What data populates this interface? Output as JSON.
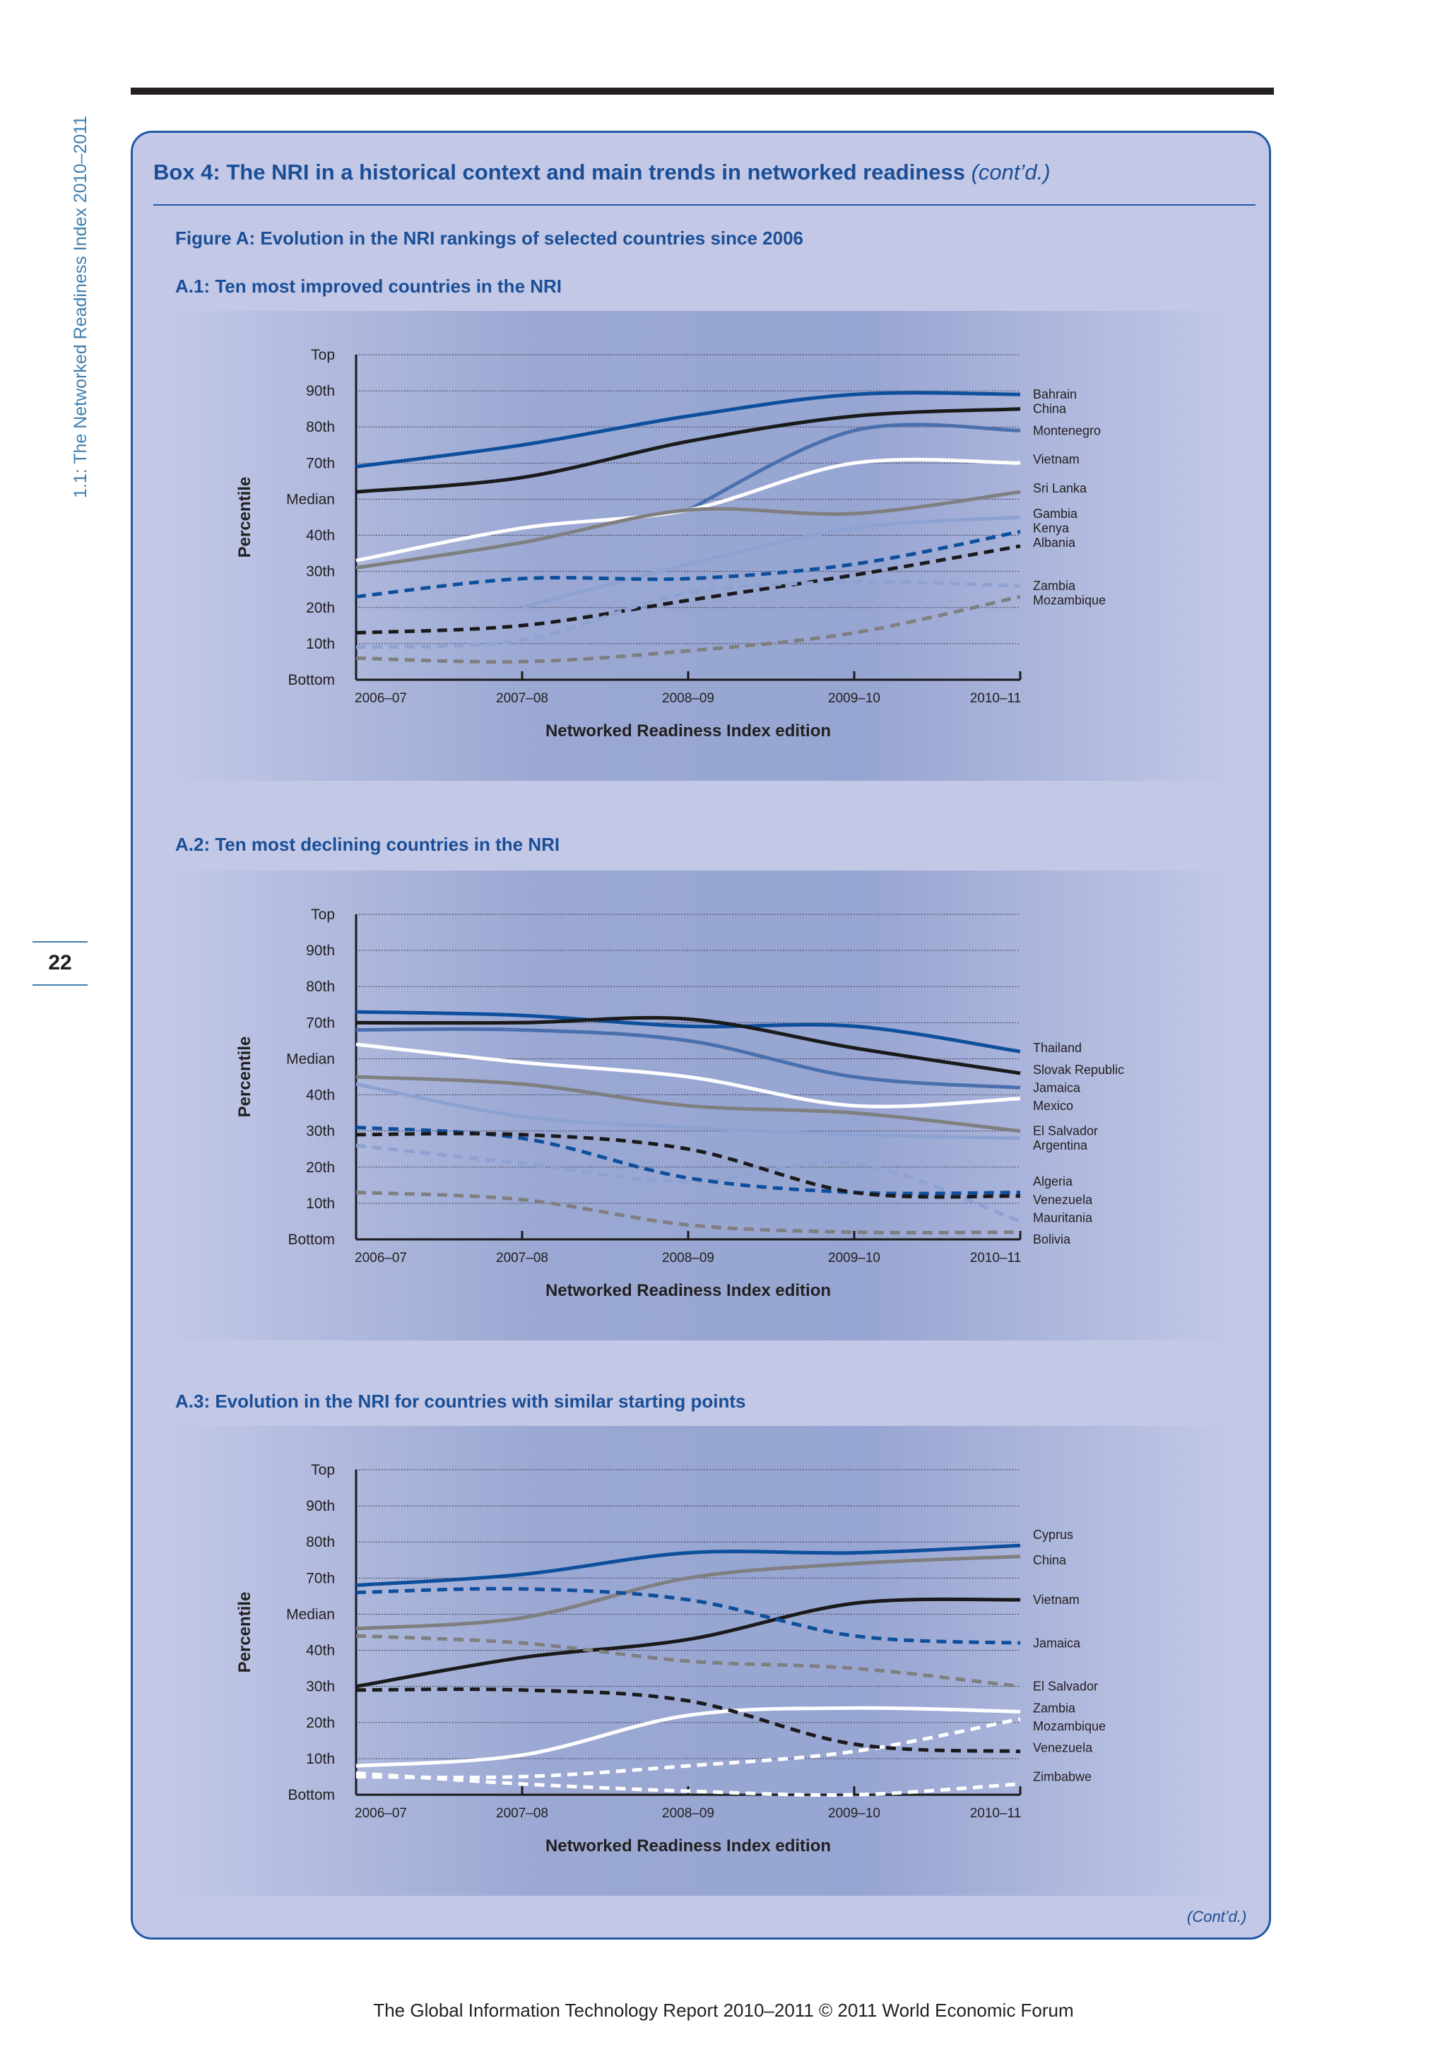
{
  "side_header": "1.1: The Networked Readiness Index 2010–2011",
  "page_number": "22",
  "box": {
    "title": "Box 4: The NRI in a historical context and main trends in networked readiness",
    "title_suffix": "(cont’d.)",
    "figure_title": "Figure A: Evolution in the NRI rankings of selected countries since 2006",
    "continued": "(Cont’d.)"
  },
  "footer": "The Global Information Technology Report 2010–2011 © 2011 World Economic Forum",
  "colors": {
    "dark_blue": "#0d4f9c",
    "mid_blue": "#4a6fad",
    "light_blue": "#8ea2d2",
    "black": "#1a1a1a",
    "gray": "#7f7f7f",
    "white": "#ffffff"
  },
  "chart_data": [
    {
      "type": "line",
      "title": "A.1: Ten most improved countries in the NRI",
      "xlabel": "Networked Readiness Index edition",
      "ylabel": "Percentile",
      "x": [
        "2006–07",
        "2007–08",
        "2008–09",
        "2009–10",
        "2010–11"
      ],
      "y_ticks": [
        "Bottom",
        "10th",
        "20th",
        "30th",
        "40th",
        "Median",
        "70th",
        "80th",
        "90th",
        "Top"
      ],
      "ylim": [
        0,
        9
      ],
      "grid": true,
      "series": [
        {
          "name": "Bahrain",
          "color": "#0d4f9c",
          "dash": false,
          "values": [
            5.9,
            6.5,
            7.3,
            7.9,
            7.9
          ]
        },
        {
          "name": "China",
          "color": "#1a1a1a",
          "dash": false,
          "values": [
            5.2,
            5.6,
            6.6,
            7.3,
            7.5
          ]
        },
        {
          "name": "Montenegro",
          "color": "#4a6fad",
          "dash": false,
          "values": [
            null,
            null,
            4.7,
            6.9,
            6.9
          ]
        },
        {
          "name": "Vietnam",
          "color": "#ffffff",
          "dash": false,
          "values": [
            3.3,
            4.2,
            4.7,
            6.0,
            6.0
          ]
        },
        {
          "name": "Sri Lanka",
          "color": "#7f7f7f",
          "dash": false,
          "values": [
            3.1,
            3.8,
            4.7,
            4.6,
            5.2
          ]
        },
        {
          "name": "Gambia",
          "color": "#8ea2d2",
          "dash": false,
          "values": [
            null,
            2.0,
            3.2,
            4.2,
            4.5
          ]
        },
        {
          "name": "Kenya",
          "color": "#0d4f9c",
          "dash": true,
          "values": [
            2.3,
            2.8,
            2.8,
            3.2,
            4.1
          ]
        },
        {
          "name": "Albania",
          "color": "#1a1a1a",
          "dash": true,
          "values": [
            1.3,
            1.5,
            2.2,
            2.9,
            3.7
          ]
        },
        {
          "name": "Zambia",
          "color": "#8ea2d2",
          "dash": true,
          "values": [
            0.9,
            1.1,
            2.4,
            2.7,
            2.6
          ]
        },
        {
          "name": "Mozambique",
          "color": "#7f7f7f",
          "dash": true,
          "values": [
            0.6,
            0.5,
            0.8,
            1.3,
            2.3
          ]
        }
      ],
      "label_rows": [
        7.9,
        7.5,
        6.9,
        6.1,
        5.3,
        4.6,
        4.2,
        3.8,
        2.6,
        2.2
      ]
    },
    {
      "type": "line",
      "title": "A.2: Ten most declining countries in the NRI",
      "xlabel": "Networked Readiness Index edition",
      "ylabel": "Percentile",
      "x": [
        "2006–07",
        "2007–08",
        "2008–09",
        "2009–10",
        "2010–11"
      ],
      "y_ticks": [
        "Bottom",
        "10th",
        "20th",
        "30th",
        "40th",
        "Median",
        "70th",
        "80th",
        "90th",
        "Top"
      ],
      "ylim": [
        0,
        9
      ],
      "grid": true,
      "series": [
        {
          "name": "Thailand",
          "color": "#0d4f9c",
          "dash": false,
          "values": [
            6.3,
            6.2,
            5.9,
            5.9,
            5.2
          ]
        },
        {
          "name": "Slovak Republic",
          "color": "#1a1a1a",
          "dash": false,
          "values": [
            6.0,
            6.0,
            6.1,
            5.3,
            4.6
          ]
        },
        {
          "name": "Jamaica",
          "color": "#4a6fad",
          "dash": false,
          "values": [
            5.8,
            5.8,
            5.5,
            4.5,
            4.2
          ]
        },
        {
          "name": "Mexico",
          "color": "#ffffff",
          "dash": false,
          "values": [
            5.4,
            4.9,
            4.5,
            3.7,
            3.9
          ]
        },
        {
          "name": "El Salvador",
          "color": "#7f7f7f",
          "dash": false,
          "values": [
            4.5,
            4.3,
            3.7,
            3.5,
            3.0
          ]
        },
        {
          "name": "Argentina",
          "color": "#8ea2d2",
          "dash": false,
          "values": [
            4.3,
            3.4,
            3.1,
            2.9,
            2.8
          ]
        },
        {
          "name": "Algeria",
          "color": "#8ea2d2",
          "dash": true,
          "values": [
            2.6,
            2.1,
            1.6,
            2.1,
            0.5
          ]
        },
        {
          "name": "Venezuela",
          "color": "#0d4f9c",
          "dash": true,
          "values": [
            3.1,
            2.8,
            1.7,
            1.3,
            1.3
          ]
        },
        {
          "name": "Mauritania",
          "color": "#1a1a1a",
          "dash": true,
          "values": [
            2.9,
            2.9,
            2.5,
            1.3,
            1.2
          ]
        },
        {
          "name": "Bolivia",
          "color": "#7f7f7f",
          "dash": true,
          "values": [
            1.3,
            1.1,
            0.4,
            0.2,
            0.2
          ]
        }
      ],
      "label_rows": [
        5.3,
        4.7,
        4.2,
        3.7,
        3.0,
        2.6,
        1.6,
        1.1,
        0.6,
        0.0
      ]
    },
    {
      "type": "line",
      "title": "A.3: Evolution in the NRI for countries with similar starting points",
      "xlabel": "Networked Readiness Index edition",
      "ylabel": "Percentile",
      "x": [
        "2006–07",
        "2007–08",
        "2008–09",
        "2009–10",
        "2010–11"
      ],
      "y_ticks": [
        "Bottom",
        "10th",
        "20th",
        "30th",
        "40th",
        "Median",
        "70th",
        "80th",
        "90th",
        "Top"
      ],
      "ylim": [
        0,
        9
      ],
      "grid": true,
      "series": [
        {
          "name": "Cyprus",
          "color": "#0d4f9c",
          "dash": false,
          "values": [
            5.8,
            6.1,
            6.7,
            6.7,
            6.9
          ]
        },
        {
          "name": "China",
          "color": "#7f7f7f",
          "dash": false,
          "values": [
            4.6,
            4.9,
            6.0,
            6.4,
            6.6
          ]
        },
        {
          "name": "Vietnam",
          "color": "#1a1a1a",
          "dash": false,
          "values": [
            3.0,
            3.8,
            4.3,
            5.3,
            5.4
          ]
        },
        {
          "name": "Jamaica",
          "color": "#0d4f9c",
          "dash": true,
          "values": [
            5.6,
            5.7,
            5.4,
            4.4,
            4.2
          ]
        },
        {
          "name": "El Salvador",
          "color": "#7f7f7f",
          "dash": true,
          "values": [
            4.4,
            4.2,
            3.7,
            3.5,
            3.0
          ]
        },
        {
          "name": "Zambia",
          "color": "#ffffff",
          "dash": false,
          "values": [
            0.8,
            1.1,
            2.2,
            2.4,
            2.3
          ]
        },
        {
          "name": "Mozambique",
          "color": "#ffffff",
          "dash": true,
          "values": [
            0.5,
            0.5,
            0.8,
            1.2,
            2.1
          ]
        },
        {
          "name": "Venezuela",
          "color": "#1a1a1a",
          "dash": true,
          "values": [
            2.9,
            2.9,
            2.6,
            1.4,
            1.2
          ]
        },
        {
          "name": "Zimbabwe",
          "color": "#ffffff",
          "dash": true,
          "values": [
            0.6,
            0.3,
            0.1,
            0.0,
            0.3
          ]
        }
      ],
      "label_rows": [
        7.2,
        6.5,
        5.4,
        4.2,
        3.0,
        2.4,
        1.9,
        1.3,
        0.5
      ]
    }
  ]
}
